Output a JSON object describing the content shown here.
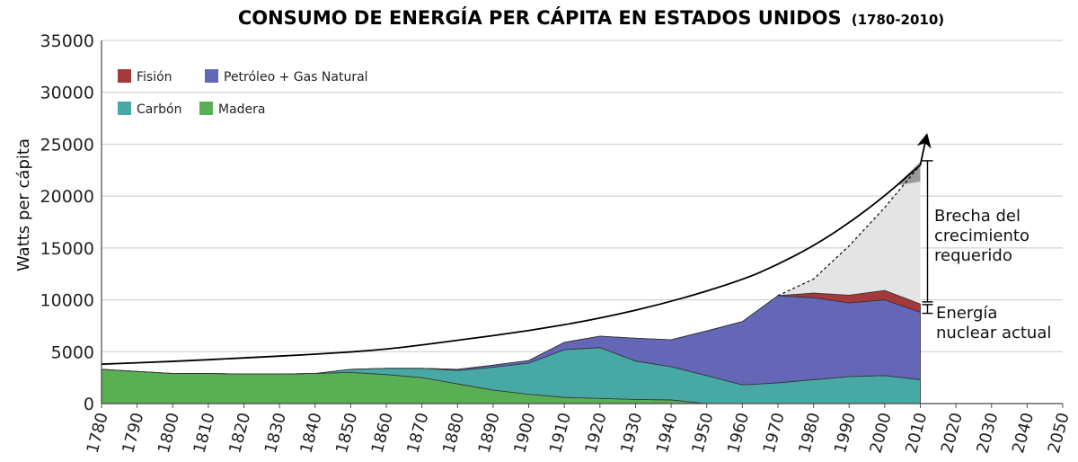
{
  "chart_data": {
    "type": "area",
    "title": "CONSUMO DE ENERGÍA PER CÁPITA EN ESTADOS UNIDOS",
    "subtitle": "(1780-2010)",
    "xlabel": "",
    "ylabel": "Watts per cápita",
    "xlim": [
      1780,
      2050
    ],
    "ylim": [
      0,
      35000
    ],
    "x_ticks": [
      "1780",
      "1790",
      "1800",
      "1810",
      "1820",
      "1830",
      "1840",
      "1850",
      "1860",
      "1870",
      "1880",
      "1890",
      "1900",
      "1910",
      "1920",
      "1930",
      "1940",
      "1950",
      "1960",
      "1970",
      "1980",
      "1990",
      "2000",
      "2010",
      "2020",
      "2030",
      "2040",
      "2050"
    ],
    "y_ticks": [
      "0",
      "5000",
      "10000",
      "15000",
      "20000",
      "25000",
      "30000",
      "35000"
    ],
    "grid": true,
    "legend_placement": "top-left",
    "stacked": true,
    "x": [
      1780,
      1790,
      1800,
      1810,
      1820,
      1830,
      1840,
      1850,
      1860,
      1870,
      1880,
      1890,
      1900,
      1910,
      1920,
      1930,
      1940,
      1950,
      1960,
      1970,
      1980,
      1990,
      2000,
      2010
    ],
    "series": [
      {
        "name": "Madera",
        "color": "#5aaf55",
        "values": [
          3300,
          3100,
          2900,
          2900,
          2850,
          2850,
          2900,
          3000,
          2800,
          2500,
          1900,
          1300,
          900,
          600,
          500,
          400,
          350,
          0,
          0,
          0,
          0,
          0,
          0,
          0
        ]
      },
      {
        "name": "Carbón",
        "color": "#48a8a6",
        "values": [
          0,
          0,
          0,
          0,
          0,
          0,
          0,
          300,
          600,
          900,
          1300,
          2200,
          3000,
          4600,
          4900,
          3700,
          3200,
          2700,
          1800,
          2000,
          2300,
          2600,
          2700,
          2300
        ]
      },
      {
        "name": "Petróleo + Gas Natural",
        "color": "#6467b8",
        "values": [
          0,
          0,
          0,
          0,
          0,
          0,
          0,
          0,
          0,
          0,
          100,
          200,
          250,
          700,
          1100,
          2200,
          2600,
          4300,
          6100,
          8400,
          7900,
          7100,
          7300,
          6500
        ]
      },
      {
        "name": "Fisión",
        "color": "#a3393a",
        "values": [
          0,
          0,
          0,
          0,
          0,
          0,
          0,
          0,
          0,
          0,
          0,
          0,
          0,
          0,
          0,
          0,
          0,
          0,
          0,
          0,
          450,
          750,
          900,
          800
        ]
      }
    ],
    "required_trend": {
      "x": [
        1780,
        1800,
        1820,
        1840,
        1860,
        1880,
        1900,
        1920,
        1940,
        1960,
        1970,
        1980,
        1990,
        2000,
        2010
      ],
      "y": [
        3800,
        4060,
        4400,
        4750,
        5200,
        6100,
        7000,
        8200,
        9800,
        11900,
        13400,
        15200,
        17400,
        20000,
        23000
      ]
    },
    "required_dotted": {
      "x": [
        1970,
        1980,
        1990,
        2000,
        2010
      ],
      "y": [
        10400,
        12000,
        15200,
        18900,
        23000
      ]
    },
    "gap_range": [
      9800,
      23400
    ],
    "nuclear_range": [
      8700,
      9800
    ],
    "annotations": [
      "Brecha del",
      "crecimiento",
      "requerido",
      "Energía",
      "nuclear actual"
    ]
  }
}
